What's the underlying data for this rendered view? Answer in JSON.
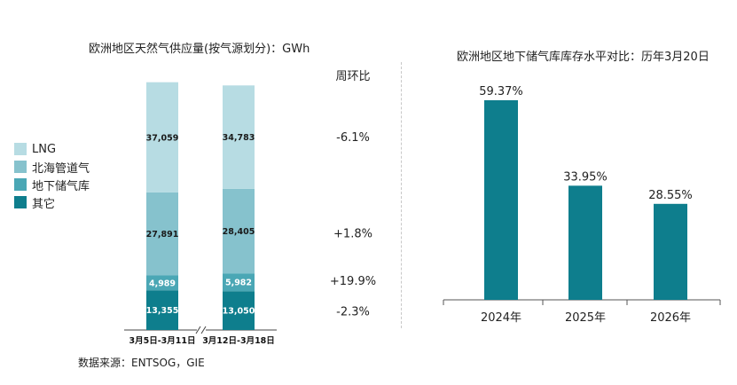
{
  "left_title": "欧洲地区天然气供应量(按气源划分)：GWh",
  "right_title": "欧洲地区地下储气库库存水平对比：历年3月20日",
  "wow_header": "周环比",
  "source_note": "数据来源：ENTSOG，GIE",
  "colors": {
    "lng": "#b7dce3",
    "north_sea": "#86c2cd",
    "storage": "#4aa7b5",
    "other": "#0e7e8d",
    "bar_right": "#0e7e8d"
  },
  "chart_data": [
    {
      "type": "bar",
      "stacked": true,
      "title": "欧洲地区天然气供应量(按气源划分)：GWh",
      "categories": [
        "3月5日-3月11日",
        "3月12日-3月18日"
      ],
      "series": [
        {
          "name": "其它",
          "values": [
            13355,
            13050
          ],
          "labels": [
            "13,355",
            "13,050"
          ],
          "color": "#0e7e8d",
          "wow": "-2.3%"
        },
        {
          "name": "地下储气库",
          "values": [
            4989,
            5982
          ],
          "labels": [
            "4,989",
            "5,982"
          ],
          "color": "#4aa7b5",
          "wow": "+19.9%"
        },
        {
          "name": "北海管道气",
          "values": [
            27891,
            28405
          ],
          "labels": [
            "27,891",
            "28,405"
          ],
          "color": "#86c2cd",
          "wow": "+1.8%"
        },
        {
          "name": "LNG",
          "values": [
            37059,
            34783
          ],
          "labels": [
            "37,059",
            "34,783"
          ],
          "color": "#b7dce3",
          "wow": "-6.1%"
        }
      ],
      "legend": [
        "LNG",
        "北海管道气",
        "地下储气库",
        "其它"
      ],
      "legend_position": "left"
    },
    {
      "type": "bar",
      "title": "欧洲地区地下储气库库存水平对比：历年3月20日",
      "categories": [
        "2024年",
        "2025年",
        "2026年"
      ],
      "values": [
        59.37,
        33.95,
        28.55
      ],
      "labels": [
        "59.37%",
        "33.95%",
        "28.55%"
      ],
      "ylim": [
        0,
        70
      ]
    }
  ]
}
